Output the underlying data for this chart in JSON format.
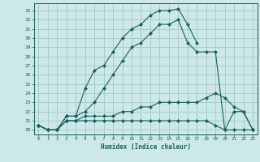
{
  "xlabel": "Humidex (Indice chaleur)",
  "ylabel": "",
  "bg_color": "#cce8e8",
  "grid_color": "#aacccc",
  "line_color": "#1a6060",
  "xlim": [
    -0.5,
    23.5
  ],
  "ylim": [
    19.5,
    33.8
  ],
  "xticks": [
    0,
    1,
    2,
    3,
    4,
    5,
    6,
    7,
    8,
    9,
    10,
    11,
    12,
    13,
    14,
    15,
    16,
    17,
    18,
    19,
    20,
    21,
    22,
    23
  ],
  "yticks": [
    20,
    21,
    22,
    23,
    24,
    25,
    26,
    27,
    28,
    29,
    30,
    31,
    32,
    33
  ],
  "series": [
    {
      "x": [
        0,
        1,
        2,
        3,
        4,
        5,
        6,
        7,
        8,
        9,
        10,
        11,
        12,
        13,
        14,
        15,
        16,
        17,
        18,
        19,
        20,
        21,
        22,
        23
      ],
      "y": [
        20.5,
        20.0,
        20.0,
        21.5,
        21.5,
        24.5,
        26.5,
        27.0,
        28.5,
        30.0,
        31.0,
        31.5,
        32.5,
        33.0,
        33.0,
        33.2,
        31.5,
        29.5,
        null,
        null,
        null,
        null,
        null,
        null
      ]
    },
    {
      "x": [
        0,
        1,
        2,
        3,
        4,
        5,
        6,
        7,
        8,
        9,
        10,
        11,
        12,
        13,
        14,
        15,
        16,
        17,
        18,
        19,
        20,
        21,
        22,
        23
      ],
      "y": [
        20.5,
        20.0,
        20.0,
        21.5,
        21.5,
        22.0,
        23.0,
        24.5,
        26.0,
        27.5,
        29.0,
        29.5,
        30.5,
        31.5,
        31.5,
        32.0,
        29.5,
        28.5,
        28.5,
        28.5,
        20.0,
        22.0,
        22.0,
        20.0
      ]
    },
    {
      "x": [
        0,
        1,
        2,
        3,
        4,
        5,
        6,
        7,
        8,
        9,
        10,
        11,
        12,
        13,
        14,
        15,
        16,
        17,
        18,
        19,
        20,
        21,
        22,
        23
      ],
      "y": [
        20.5,
        20.0,
        20.0,
        21.0,
        21.0,
        21.5,
        21.5,
        21.5,
        21.5,
        22.0,
        22.0,
        22.5,
        22.5,
        23.0,
        23.0,
        23.0,
        23.0,
        23.0,
        23.5,
        24.0,
        23.5,
        22.5,
        22.0,
        20.0
      ]
    },
    {
      "x": [
        0,
        1,
        2,
        3,
        4,
        5,
        6,
        7,
        8,
        9,
        10,
        11,
        12,
        13,
        14,
        15,
        16,
        17,
        18,
        19,
        20,
        21,
        22,
        23
      ],
      "y": [
        20.5,
        20.0,
        20.0,
        21.0,
        21.0,
        21.0,
        21.0,
        21.0,
        21.0,
        21.0,
        21.0,
        21.0,
        21.0,
        21.0,
        21.0,
        21.0,
        21.0,
        21.0,
        21.0,
        20.5,
        20.0,
        20.0,
        20.0,
        20.0
      ]
    }
  ]
}
